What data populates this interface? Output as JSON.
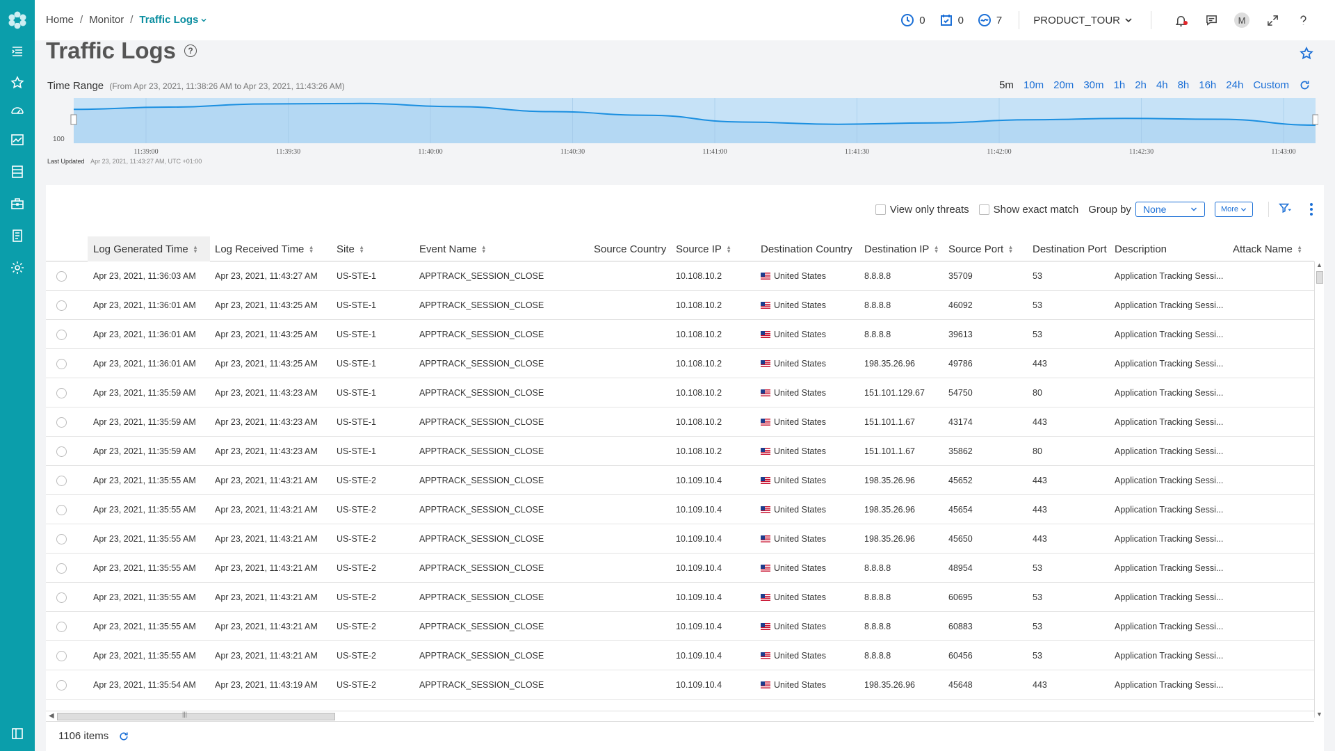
{
  "breadcrumb": {
    "home": "Home",
    "monitor": "Monitor",
    "current": "Traffic Logs"
  },
  "header": {
    "alarms_count": "0",
    "tasks_count": "0",
    "jobs_count": "7",
    "tenant": "PRODUCT_TOUR",
    "avatar_initial": "M"
  },
  "page": {
    "title": "Traffic Logs",
    "help": "?"
  },
  "time_range": {
    "label": "Time Range",
    "sub": "(From Apr 23, 2021, 11:38:26 AM to Apr 23, 2021, 11:43:26 AM)",
    "buttons": [
      "5m",
      "10m",
      "20m",
      "30m",
      "1h",
      "2h",
      "4h",
      "8h",
      "16h",
      "24h",
      "Custom"
    ],
    "active": "5m"
  },
  "chart_data": {
    "type": "area",
    "y_tick": "100",
    "x": [
      "11:39:00",
      "11:39:30",
      "11:40:00",
      "11:40:30",
      "11:41:00",
      "11:41:30",
      "11:42:00",
      "11:42:30",
      "11:43:00"
    ],
    "shape": [
      0.25,
      0.2,
      0.13,
      0.12,
      0.19,
      0.3,
      0.38,
      0.53,
      0.58,
      0.55,
      0.48,
      0.45,
      0.47,
      0.6
    ],
    "colors": {
      "fill": "#c6e2f7",
      "line": "#1b8fe0"
    }
  },
  "last_updated": {
    "label": "Last Updated",
    "value": "Apr 23, 2021, 11:43:27 AM, UTC +01:00"
  },
  "toolbar": {
    "view_threats": "View only threats",
    "exact_match": "Show exact match",
    "group_by_label": "Group by",
    "group_by_value": "None",
    "more": "More"
  },
  "columns": [
    "Log Generated Time",
    "Log Received Time",
    "Site",
    "Event Name",
    "Source Country",
    "Source IP",
    "Destination Country",
    "Destination IP",
    "Source Port",
    "Destination Port",
    "Description",
    "Attack Name"
  ],
  "rows": [
    [
      "Apr 23, 2021, 11:36:03 AM",
      "Apr 23, 2021, 11:43:27 AM",
      "US-STE-1",
      "APPTRACK_SESSION_CLOSE",
      "",
      "10.108.10.2",
      "United States",
      "8.8.8.8",
      "35709",
      "53",
      "Application Tracking Sessi..."
    ],
    [
      "Apr 23, 2021, 11:36:01 AM",
      "Apr 23, 2021, 11:43:25 AM",
      "US-STE-1",
      "APPTRACK_SESSION_CLOSE",
      "",
      "10.108.10.2",
      "United States",
      "8.8.8.8",
      "46092",
      "53",
      "Application Tracking Sessi..."
    ],
    [
      "Apr 23, 2021, 11:36:01 AM",
      "Apr 23, 2021, 11:43:25 AM",
      "US-STE-1",
      "APPTRACK_SESSION_CLOSE",
      "",
      "10.108.10.2",
      "United States",
      "8.8.8.8",
      "39613",
      "53",
      "Application Tracking Sessi..."
    ],
    [
      "Apr 23, 2021, 11:36:01 AM",
      "Apr 23, 2021, 11:43:25 AM",
      "US-STE-1",
      "APPTRACK_SESSION_CLOSE",
      "",
      "10.108.10.2",
      "United States",
      "198.35.26.96",
      "49786",
      "443",
      "Application Tracking Sessi..."
    ],
    [
      "Apr 23, 2021, 11:35:59 AM",
      "Apr 23, 2021, 11:43:23 AM",
      "US-STE-1",
      "APPTRACK_SESSION_CLOSE",
      "",
      "10.108.10.2",
      "United States",
      "151.101.129.67",
      "54750",
      "80",
      "Application Tracking Sessi..."
    ],
    [
      "Apr 23, 2021, 11:35:59 AM",
      "Apr 23, 2021, 11:43:23 AM",
      "US-STE-1",
      "APPTRACK_SESSION_CLOSE",
      "",
      "10.108.10.2",
      "United States",
      "151.101.1.67",
      "43174",
      "443",
      "Application Tracking Sessi..."
    ],
    [
      "Apr 23, 2021, 11:35:59 AM",
      "Apr 23, 2021, 11:43:23 AM",
      "US-STE-1",
      "APPTRACK_SESSION_CLOSE",
      "",
      "10.108.10.2",
      "United States",
      "151.101.1.67",
      "35862",
      "80",
      "Application Tracking Sessi..."
    ],
    [
      "Apr 23, 2021, 11:35:55 AM",
      "Apr 23, 2021, 11:43:21 AM",
      "US-STE-2",
      "APPTRACK_SESSION_CLOSE",
      "",
      "10.109.10.4",
      "United States",
      "198.35.26.96",
      "45652",
      "443",
      "Application Tracking Sessi..."
    ],
    [
      "Apr 23, 2021, 11:35:55 AM",
      "Apr 23, 2021, 11:43:21 AM",
      "US-STE-2",
      "APPTRACK_SESSION_CLOSE",
      "",
      "10.109.10.4",
      "United States",
      "198.35.26.96",
      "45654",
      "443",
      "Application Tracking Sessi..."
    ],
    [
      "Apr 23, 2021, 11:35:55 AM",
      "Apr 23, 2021, 11:43:21 AM",
      "US-STE-2",
      "APPTRACK_SESSION_CLOSE",
      "",
      "10.109.10.4",
      "United States",
      "198.35.26.96",
      "45650",
      "443",
      "Application Tracking Sessi..."
    ],
    [
      "Apr 23, 2021, 11:35:55 AM",
      "Apr 23, 2021, 11:43:21 AM",
      "US-STE-2",
      "APPTRACK_SESSION_CLOSE",
      "",
      "10.109.10.4",
      "United States",
      "8.8.8.8",
      "48954",
      "53",
      "Application Tracking Sessi..."
    ],
    [
      "Apr 23, 2021, 11:35:55 AM",
      "Apr 23, 2021, 11:43:21 AM",
      "US-STE-2",
      "APPTRACK_SESSION_CLOSE",
      "",
      "10.109.10.4",
      "United States",
      "8.8.8.8",
      "60695",
      "53",
      "Application Tracking Sessi..."
    ],
    [
      "Apr 23, 2021, 11:35:55 AM",
      "Apr 23, 2021, 11:43:21 AM",
      "US-STE-2",
      "APPTRACK_SESSION_CLOSE",
      "",
      "10.109.10.4",
      "United States",
      "8.8.8.8",
      "60883",
      "53",
      "Application Tracking Sessi..."
    ],
    [
      "Apr 23, 2021, 11:35:55 AM",
      "Apr 23, 2021, 11:43:21 AM",
      "US-STE-2",
      "APPTRACK_SESSION_CLOSE",
      "",
      "10.109.10.4",
      "United States",
      "8.8.8.8",
      "60456",
      "53",
      "Application Tracking Sessi..."
    ],
    [
      "Apr 23, 2021, 11:35:54 AM",
      "Apr 23, 2021, 11:43:19 AM",
      "US-STE-2",
      "APPTRACK_SESSION_CLOSE",
      "",
      "10.109.10.4",
      "United States",
      "198.35.26.96",
      "45648",
      "443",
      "Application Tracking Sessi..."
    ]
  ],
  "footer": {
    "items": "1106 items"
  },
  "sidebar": {
    "icons": [
      "menu-icon",
      "star-icon",
      "dashboard-icon",
      "monitor-icon",
      "devices-icon",
      "briefcase-icon",
      "report-icon",
      "gear-icon"
    ]
  }
}
